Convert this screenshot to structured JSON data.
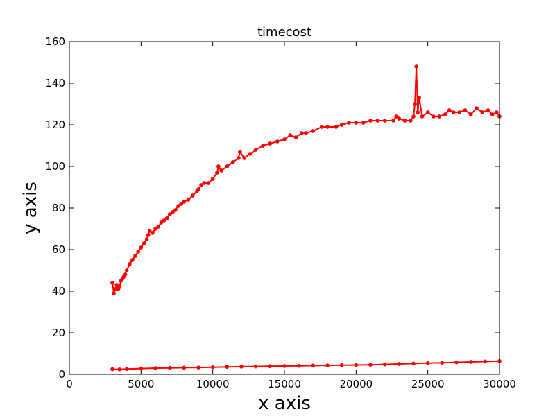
{
  "chart_data": {
    "type": "line",
    "title": "timecost",
    "xlabel": "x axis",
    "ylabel": "y axis",
    "xlim": [
      0,
      30000
    ],
    "ylim": [
      0,
      160
    ],
    "xticks": [
      "0",
      "5000",
      "10000",
      "15000",
      "20000",
      "25000",
      "30000"
    ],
    "yticks": [
      "0",
      "20",
      "40",
      "60",
      "80",
      "100",
      "120",
      "140",
      "160"
    ],
    "grid": false,
    "legend": "none",
    "series_color": "#ff0000",
    "series": [
      {
        "x": [
          3000,
          3100,
          3200,
          3300,
          3400,
          3500,
          3600,
          3700,
          3800,
          3900,
          4000,
          4200,
          4400,
          4600,
          4800,
          5000,
          5200,
          5400,
          5500,
          5600,
          5800,
          6000,
          6200,
          6400,
          6600,
          6800,
          7000,
          7200,
          7400,
          7600,
          7800,
          8000,
          8300,
          8600,
          8900,
          9000,
          9200,
          9400,
          9700,
          10000,
          10300,
          10400,
          10600,
          11000,
          11400,
          11800,
          11900,
          12200,
          12600,
          13000,
          13500,
          14000,
          14500,
          15000,
          15400,
          15800,
          16200,
          16500,
          17000,
          17600,
          18000,
          18600,
          19000,
          19500,
          20000,
          20500,
          21000,
          21500,
          22000,
          22600,
          22800,
          23000,
          23400,
          23800,
          24000,
          24100,
          24200,
          24300,
          24400,
          24600,
          25000,
          25400,
          25800,
          26200,
          26500,
          26800,
          27200,
          27600,
          28000,
          28400,
          28800,
          29200,
          29500,
          29800,
          30000
        ],
        "values": [
          44,
          39,
          41,
          43,
          41,
          42,
          45,
          46,
          47,
          48,
          50,
          53,
          55,
          57,
          59,
          61,
          63,
          65,
          67,
          69,
          68,
          70,
          71,
          73,
          74,
          75,
          77,
          78,
          79,
          81,
          82,
          83,
          84,
          86,
          88,
          89,
          91,
          92,
          92,
          94,
          97,
          100,
          98,
          100,
          102,
          104,
          107,
          104,
          106,
          108,
          110,
          111,
          112,
          113,
          115,
          114,
          116,
          116,
          117,
          119,
          119,
          119,
          120,
          121,
          121,
          121,
          122,
          122,
          122,
          122,
          124,
          123,
          122,
          122,
          124,
          130,
          148,
          126,
          133,
          124,
          126,
          124,
          124,
          125,
          127,
          126,
          126,
          127,
          125,
          128,
          126,
          127,
          125,
          126,
          124
        ]
      },
      {
        "x": [
          3000,
          3500,
          4000,
          5000,
          6000,
          7000,
          8000,
          9000,
          10000,
          11000,
          12000,
          13000,
          14000,
          15000,
          16000,
          17000,
          18000,
          19000,
          20000,
          21000,
          22000,
          23000,
          24000,
          25000,
          26000,
          27000,
          28000,
          29000,
          30000
        ],
        "values": [
          2.5,
          2.4,
          2.6,
          2.8,
          3.0,
          3.1,
          3.2,
          3.3,
          3.4,
          3.6,
          3.7,
          3.8,
          3.9,
          4.0,
          4.1,
          4.2,
          4.3,
          4.4,
          4.5,
          4.6,
          4.8,
          5.0,
          5.2,
          5.4,
          5.6,
          5.8,
          6.0,
          6.2,
          6.4
        ]
      }
    ]
  }
}
